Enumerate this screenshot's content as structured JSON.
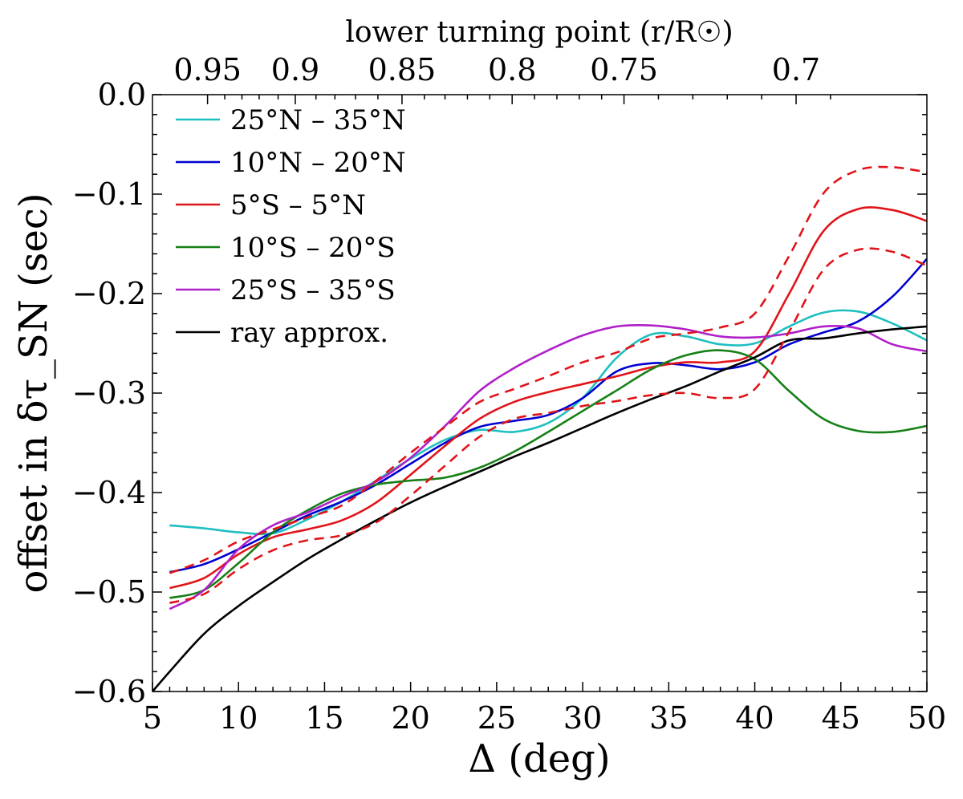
{
  "chart_data": {
    "type": "line",
    "title": "",
    "xlabel": "Δ (deg)",
    "ylabel": "offset in δτ_SN (sec)",
    "xlim": [
      5,
      50
    ],
    "ylim": [
      -0.6,
      0.0
    ],
    "x_ticks": [
      5,
      10,
      15,
      20,
      25,
      30,
      35,
      40,
      45,
      50
    ],
    "x_tick_labels": [
      "5",
      "10",
      "15",
      "20",
      "25",
      "30",
      "35",
      "40",
      "45",
      "50"
    ],
    "y_ticks": [
      0.0,
      -0.1,
      -0.2,
      -0.3,
      -0.4,
      -0.5,
      -0.6
    ],
    "y_tick_labels": [
      "0.0",
      "−0.1",
      "−0.2",
      "−0.3",
      "−0.4",
      "−0.5",
      "−0.6"
    ],
    "top_axis": {
      "label": "lower turning point (r/R☉)",
      "tick_labels": [
        "0.95",
        "0.9",
        "0.85",
        "0.8",
        "0.75",
        "0.7"
      ],
      "tick_delta": [
        8.2,
        13.3,
        19.5,
        25.9,
        32.4,
        42.4
      ],
      "minor_tick_delta": [
        9.2,
        10.2,
        11.2,
        12.3,
        14.5,
        15.6,
        16.8,
        18.1,
        20.8,
        22.0,
        23.3,
        24.6,
        27.2,
        28.5,
        29.8,
        31.1,
        34.4,
        36.4,
        38.4,
        40.4,
        44.4
      ]
    },
    "legend_position": "top-left",
    "series": [
      {
        "name": "25°N – 35°N",
        "color": "#1fbfbf",
        "style": "solid",
        "x": [
          6,
          8,
          10,
          12,
          14,
          16,
          18,
          20,
          22,
          24,
          26,
          28,
          30,
          32,
          34,
          36,
          38,
          40,
          42,
          44,
          46,
          48,
          50
        ],
        "y": [
          -0.433,
          -0.436,
          -0.44,
          -0.441,
          -0.427,
          -0.409,
          -0.388,
          -0.366,
          -0.347,
          -0.337,
          -0.339,
          -0.33,
          -0.305,
          -0.264,
          -0.241,
          -0.243,
          -0.251,
          -0.25,
          -0.233,
          -0.219,
          -0.218,
          -0.23,
          -0.247
        ]
      },
      {
        "name": "10°N – 20°N",
        "color": "#0000d0",
        "style": "solid",
        "x": [
          6,
          8,
          10,
          12,
          14,
          16,
          18,
          20,
          22,
          24,
          26,
          28,
          30,
          32,
          34,
          36,
          38,
          40,
          42,
          44,
          46,
          48,
          50
        ],
        "y": [
          -0.48,
          -0.472,
          -0.457,
          -0.44,
          -0.423,
          -0.409,
          -0.392,
          -0.371,
          -0.35,
          -0.334,
          -0.328,
          -0.322,
          -0.305,
          -0.278,
          -0.27,
          -0.272,
          -0.276,
          -0.269,
          -0.251,
          -0.239,
          -0.228,
          -0.203,
          -0.165
        ]
      },
      {
        "name": "5°S – 5°N",
        "color": "#e0141a",
        "style": "solid",
        "x": [
          6,
          8,
          10,
          12,
          14,
          16,
          18,
          20,
          22,
          24,
          26,
          28,
          30,
          32,
          34,
          36,
          38,
          40,
          42,
          44,
          46,
          48,
          50
        ],
        "y": [
          -0.496,
          -0.486,
          -0.462,
          -0.445,
          -0.437,
          -0.428,
          -0.41,
          -0.382,
          -0.353,
          -0.326,
          -0.309,
          -0.299,
          -0.291,
          -0.283,
          -0.274,
          -0.269,
          -0.269,
          -0.258,
          -0.2,
          -0.137,
          -0.115,
          -0.116,
          -0.127
        ]
      },
      {
        "name": "10°S – 20°S",
        "color": "#168016",
        "style": "solid",
        "x": [
          6,
          8,
          10,
          12,
          14,
          16,
          18,
          20,
          22,
          24,
          26,
          28,
          30,
          32,
          34,
          36,
          38,
          40,
          42,
          44,
          46,
          48,
          50
        ],
        "y": [
          -0.506,
          -0.498,
          -0.471,
          -0.44,
          -0.418,
          -0.401,
          -0.392,
          -0.388,
          -0.385,
          -0.375,
          -0.359,
          -0.339,
          -0.318,
          -0.297,
          -0.276,
          -0.262,
          -0.257,
          -0.266,
          -0.298,
          -0.326,
          -0.338,
          -0.339,
          -0.333
        ]
      },
      {
        "name": "25°S – 35°S",
        "color": "#b020c8",
        "style": "solid",
        "x": [
          6,
          8,
          10,
          12,
          14,
          16,
          18,
          20,
          22,
          24,
          26,
          28,
          30,
          32,
          34,
          36,
          38,
          40,
          42,
          44,
          46,
          48,
          50
        ],
        "y": [
          -0.517,
          -0.498,
          -0.457,
          -0.433,
          -0.42,
          -0.404,
          -0.389,
          -0.365,
          -0.333,
          -0.298,
          -0.275,
          -0.257,
          -0.242,
          -0.233,
          -0.232,
          -0.236,
          -0.243,
          -0.244,
          -0.24,
          -0.233,
          -0.235,
          -0.251,
          -0.258
        ]
      },
      {
        "name": "ray approx.",
        "color": "#000000",
        "style": "solid",
        "x": [
          5,
          6,
          8,
          10,
          12,
          14,
          16,
          18,
          20,
          22,
          24,
          26,
          28,
          30,
          32,
          34,
          36,
          38,
          40,
          42,
          44,
          46,
          48,
          50
        ],
        "y": [
          -0.6,
          -0.58,
          -0.542,
          -0.514,
          -0.49,
          -0.467,
          -0.447,
          -0.428,
          -0.41,
          -0.394,
          -0.379,
          -0.364,
          -0.35,
          -0.335,
          -0.32,
          -0.306,
          -0.293,
          -0.278,
          -0.264,
          -0.247,
          -0.245,
          -0.24,
          -0.236,
          -0.233
        ]
      },
      {
        "name": "5°S – 5°N (upper bound)",
        "color": "#e0141a",
        "style": "dashed",
        "legend": false,
        "x": [
          6,
          8,
          10,
          12,
          14,
          16,
          18,
          20,
          22,
          24,
          26,
          28,
          30,
          32,
          34,
          36,
          38,
          40,
          42,
          44,
          46,
          48,
          50
        ],
        "y": [
          -0.481,
          -0.468,
          -0.449,
          -0.437,
          -0.425,
          -0.413,
          -0.388,
          -0.36,
          -0.334,
          -0.309,
          -0.296,
          -0.283,
          -0.269,
          -0.259,
          -0.245,
          -0.24,
          -0.234,
          -0.22,
          -0.162,
          -0.099,
          -0.076,
          -0.073,
          -0.078
        ]
      },
      {
        "name": "5°S – 5°N (lower bound)",
        "color": "#e0141a",
        "style": "dashed",
        "legend": false,
        "x": [
          6,
          8,
          10,
          12,
          14,
          16,
          18,
          20,
          22,
          24,
          26,
          28,
          30,
          32,
          34,
          36,
          38,
          40,
          42,
          44,
          46,
          48,
          50
        ],
        "y": [
          -0.511,
          -0.502,
          -0.477,
          -0.458,
          -0.448,
          -0.443,
          -0.43,
          -0.403,
          -0.373,
          -0.344,
          -0.326,
          -0.32,
          -0.313,
          -0.308,
          -0.302,
          -0.3,
          -0.305,
          -0.296,
          -0.238,
          -0.176,
          -0.156,
          -0.158,
          -0.172
        ]
      }
    ]
  }
}
